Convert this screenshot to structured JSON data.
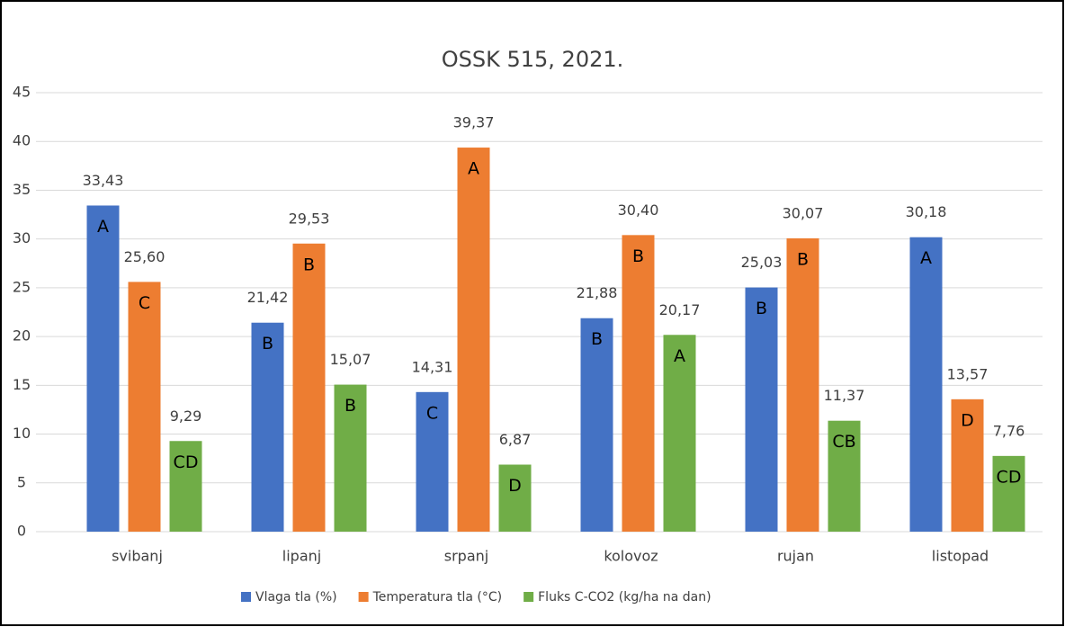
{
  "chart_data": {
    "type": "bar",
    "title": "OSSK 515, 2021.",
    "categories": [
      "svibanj",
      "lipanj",
      "srpanj",
      "kolovoz",
      "rujan",
      "listopad"
    ],
    "series": [
      {
        "name": "Vlaga tla (%)",
        "color": "#4472c4",
        "values": [
          33.43,
          21.42,
          14.31,
          21.88,
          25.03,
          30.18
        ],
        "value_labels": [
          "33,43",
          "21,42",
          "14,31",
          "21,88",
          "25,03",
          "30,18"
        ],
        "letters": [
          "A",
          "B",
          "C",
          "B",
          "B",
          "A"
        ]
      },
      {
        "name": "Temperatura tla (°C)",
        "color": "#ed7d31",
        "values": [
          25.6,
          29.53,
          39.37,
          30.4,
          30.07,
          13.57
        ],
        "value_labels": [
          "25,60",
          "29,53",
          "39,37",
          "30,40",
          "30,07",
          "13,57"
        ],
        "letters": [
          "C",
          "B",
          "A",
          "B",
          "B",
          "D"
        ]
      },
      {
        "name": "Fluks C-CO2 (kg/ha na dan)",
        "color": "#70ad47",
        "values": [
          9.29,
          15.07,
          6.87,
          20.17,
          11.37,
          7.76
        ],
        "value_labels": [
          "9,29",
          "15,07",
          "6,87",
          "20,17",
          "11,37",
          "7,76"
        ],
        "letters": [
          "CD",
          "B",
          "D",
          "A",
          "CB",
          "CD"
        ]
      }
    ],
    "ylim": [
      0,
      45
    ],
    "yticks": [
      0,
      5,
      10,
      15,
      20,
      25,
      30,
      35,
      40,
      45
    ],
    "grid": true,
    "legend": "bottom"
  }
}
